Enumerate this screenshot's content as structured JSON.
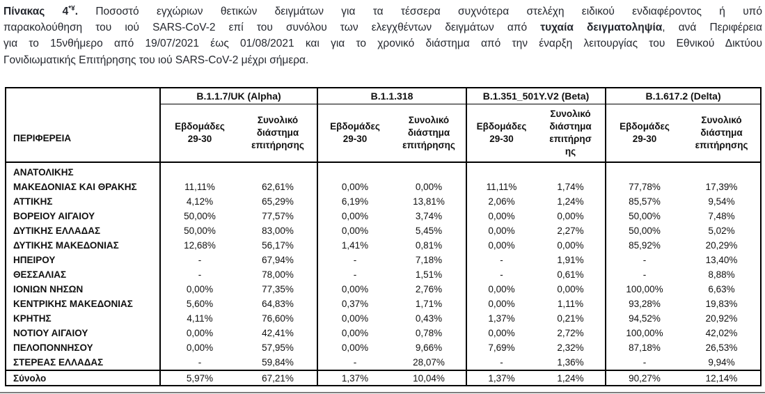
{
  "caption": {
    "line1_bold": "Πίνακας 4",
    "line1_sup": "*¥",
    "line1_bold_dot": ".",
    "line1_rest": " Ποσοστό εγχώριων θετικών δειγμάτων για τα τέσσερα συχνότερα στελέχη ειδικού ενδιαφέροντος ή υπό",
    "line2_pre": "παρακολούθηση του ιού SARS-CoV-2 επί του συνόλου των ελεγχθέντων δειγμάτων από ",
    "line2_bold": "τυχαία δειγματοληψία",
    "line2_post": ", ανά Περιφέρεια",
    "line3": "για το 15νθήμερο από 19/07/2021 έως 01/08/2021 και για το χρονικό διάστημα από την έναρξη λειτουργίας του Εθνικού Δικτύου",
    "line4": "Γονιδιωματικής Επιτήρησης του ιού SARS-CoV-2 μέχρι σήμερα."
  },
  "table": {
    "region_header": "ΠΕΡΙΦΕΡΕΙΑ",
    "groups": [
      {
        "name": "B.1.1.7/UK (Alpha)",
        "sub": [
          "Εβδομάδες\n29-30",
          "Συνολικό\nδιάστημα\nεπιτήρησης"
        ]
      },
      {
        "name": "B.1.1.318",
        "sub": [
          "Εβδομάδες\n29-30",
          "Συνολικό\nδιάστημα\nεπιτήρησης"
        ]
      },
      {
        "name": "B.1.351_501Y.V2 (Beta)",
        "sub": [
          "Εβδομάδες\n29-30",
          "Συνολικό\nδιάστημα\nεπιτήρησ\nης"
        ]
      },
      {
        "name": "B.1.617.2 (Delta)",
        "sub": [
          "Εβδομάδες\n29-30",
          "Συνολικό\nδιάστημα\nεπιτήρησης"
        ]
      }
    ],
    "rows": [
      {
        "region": "ΑΝΑΤΟΛΙΚΗΣ\nΜΑΚΕΔΟΝΙΑΣ ΚΑΙ ΘΡΑΚΗΣ",
        "values": [
          "11,11%",
          "62,61%",
          "0,00%",
          "0,00%",
          "11,11%",
          "1,74%",
          "77,78%",
          "17,39%"
        ]
      },
      {
        "region": "ΑΤΤΙΚΗΣ",
        "values": [
          "4,12%",
          "65,29%",
          "6,19%",
          "13,81%",
          "2,06%",
          "1,24%",
          "85,57%",
          "9,54%"
        ]
      },
      {
        "region": "ΒΟΡΕΙΟΥ ΑΙΓΑΙΟΥ",
        "values": [
          "50,00%",
          "77,57%",
          "0,00%",
          "3,74%",
          "0,00%",
          "0,00%",
          "50,00%",
          "7,48%"
        ]
      },
      {
        "region": "ΔΥΤΙΚΗΣ ΕΛΛΑΔΑΣ",
        "values": [
          "50,00%",
          "83,00%",
          "0,00%",
          "5,45%",
          "0,00%",
          "2,27%",
          "50,00%",
          "5,02%"
        ]
      },
      {
        "region": "ΔΥΤΙΚΗΣ ΜΑΚΕΔΟΝΙΑΣ",
        "values": [
          "12,68%",
          "56,17%",
          "1,41%",
          "0,81%",
          "0,00%",
          "0,00%",
          "85,92%",
          "20,29%"
        ]
      },
      {
        "region": "ΗΠΕΙΡΟΥ",
        "values": [
          "-",
          "67,94%",
          "-",
          "7,18%",
          "-",
          "1,91%",
          "-",
          "13,40%"
        ]
      },
      {
        "region": "ΘΕΣΣΑΛΙΑΣ",
        "values": [
          "-",
          "78,00%",
          "-",
          "1,51%",
          "-",
          "0,61%",
          "-",
          "8,88%"
        ]
      },
      {
        "region": "ΙΟΝΙΩΝ ΝΗΣΩΝ",
        "values": [
          "0,00%",
          "77,35%",
          "0,00%",
          "2,76%",
          "0,00%",
          "0,00%",
          "100,00%",
          "6,63%"
        ]
      },
      {
        "region": "ΚΕΝΤΡΙΚΗΣ ΜΑΚΕΔΟΝΙΑΣ",
        "values": [
          "5,60%",
          "64,83%",
          "0,37%",
          "1,71%",
          "0,00%",
          "1,11%",
          "93,28%",
          "19,83%"
        ]
      },
      {
        "region": "ΚΡΗΤΗΣ",
        "values": [
          "4,11%",
          "76,60%",
          "0,00%",
          "0,43%",
          "1,37%",
          "0,21%",
          "94,52%",
          "20,92%"
        ]
      },
      {
        "region": "ΝΟΤΙΟΥ ΑΙΓΑΙΟΥ",
        "values": [
          "0,00%",
          "42,41%",
          "0,00%",
          "0,78%",
          "0,00%",
          "2,72%",
          "100,00%",
          "42,02%"
        ]
      },
      {
        "region": "ΠΕΛΟΠΟΝΝΗΣΟΥ",
        "values": [
          "0,00%",
          "57,95%",
          "0,00%",
          "9,66%",
          "7,69%",
          "2,32%",
          "87,18%",
          "26,53%"
        ]
      },
      {
        "region": "ΣΤΕΡΕΑΣ ΕΛΛΑΔΑΣ",
        "values": [
          "-",
          "59,84%",
          "-",
          "28,07%",
          "-",
          "1,36%",
          "-",
          "9,94%"
        ]
      }
    ],
    "total": {
      "label": "Σύνολο",
      "values": [
        "5,97%",
        "67,21%",
        "1,37%",
        "10,04%",
        "1,37%",
        "1,24%",
        "90,27%",
        "12,14%"
      ]
    }
  }
}
